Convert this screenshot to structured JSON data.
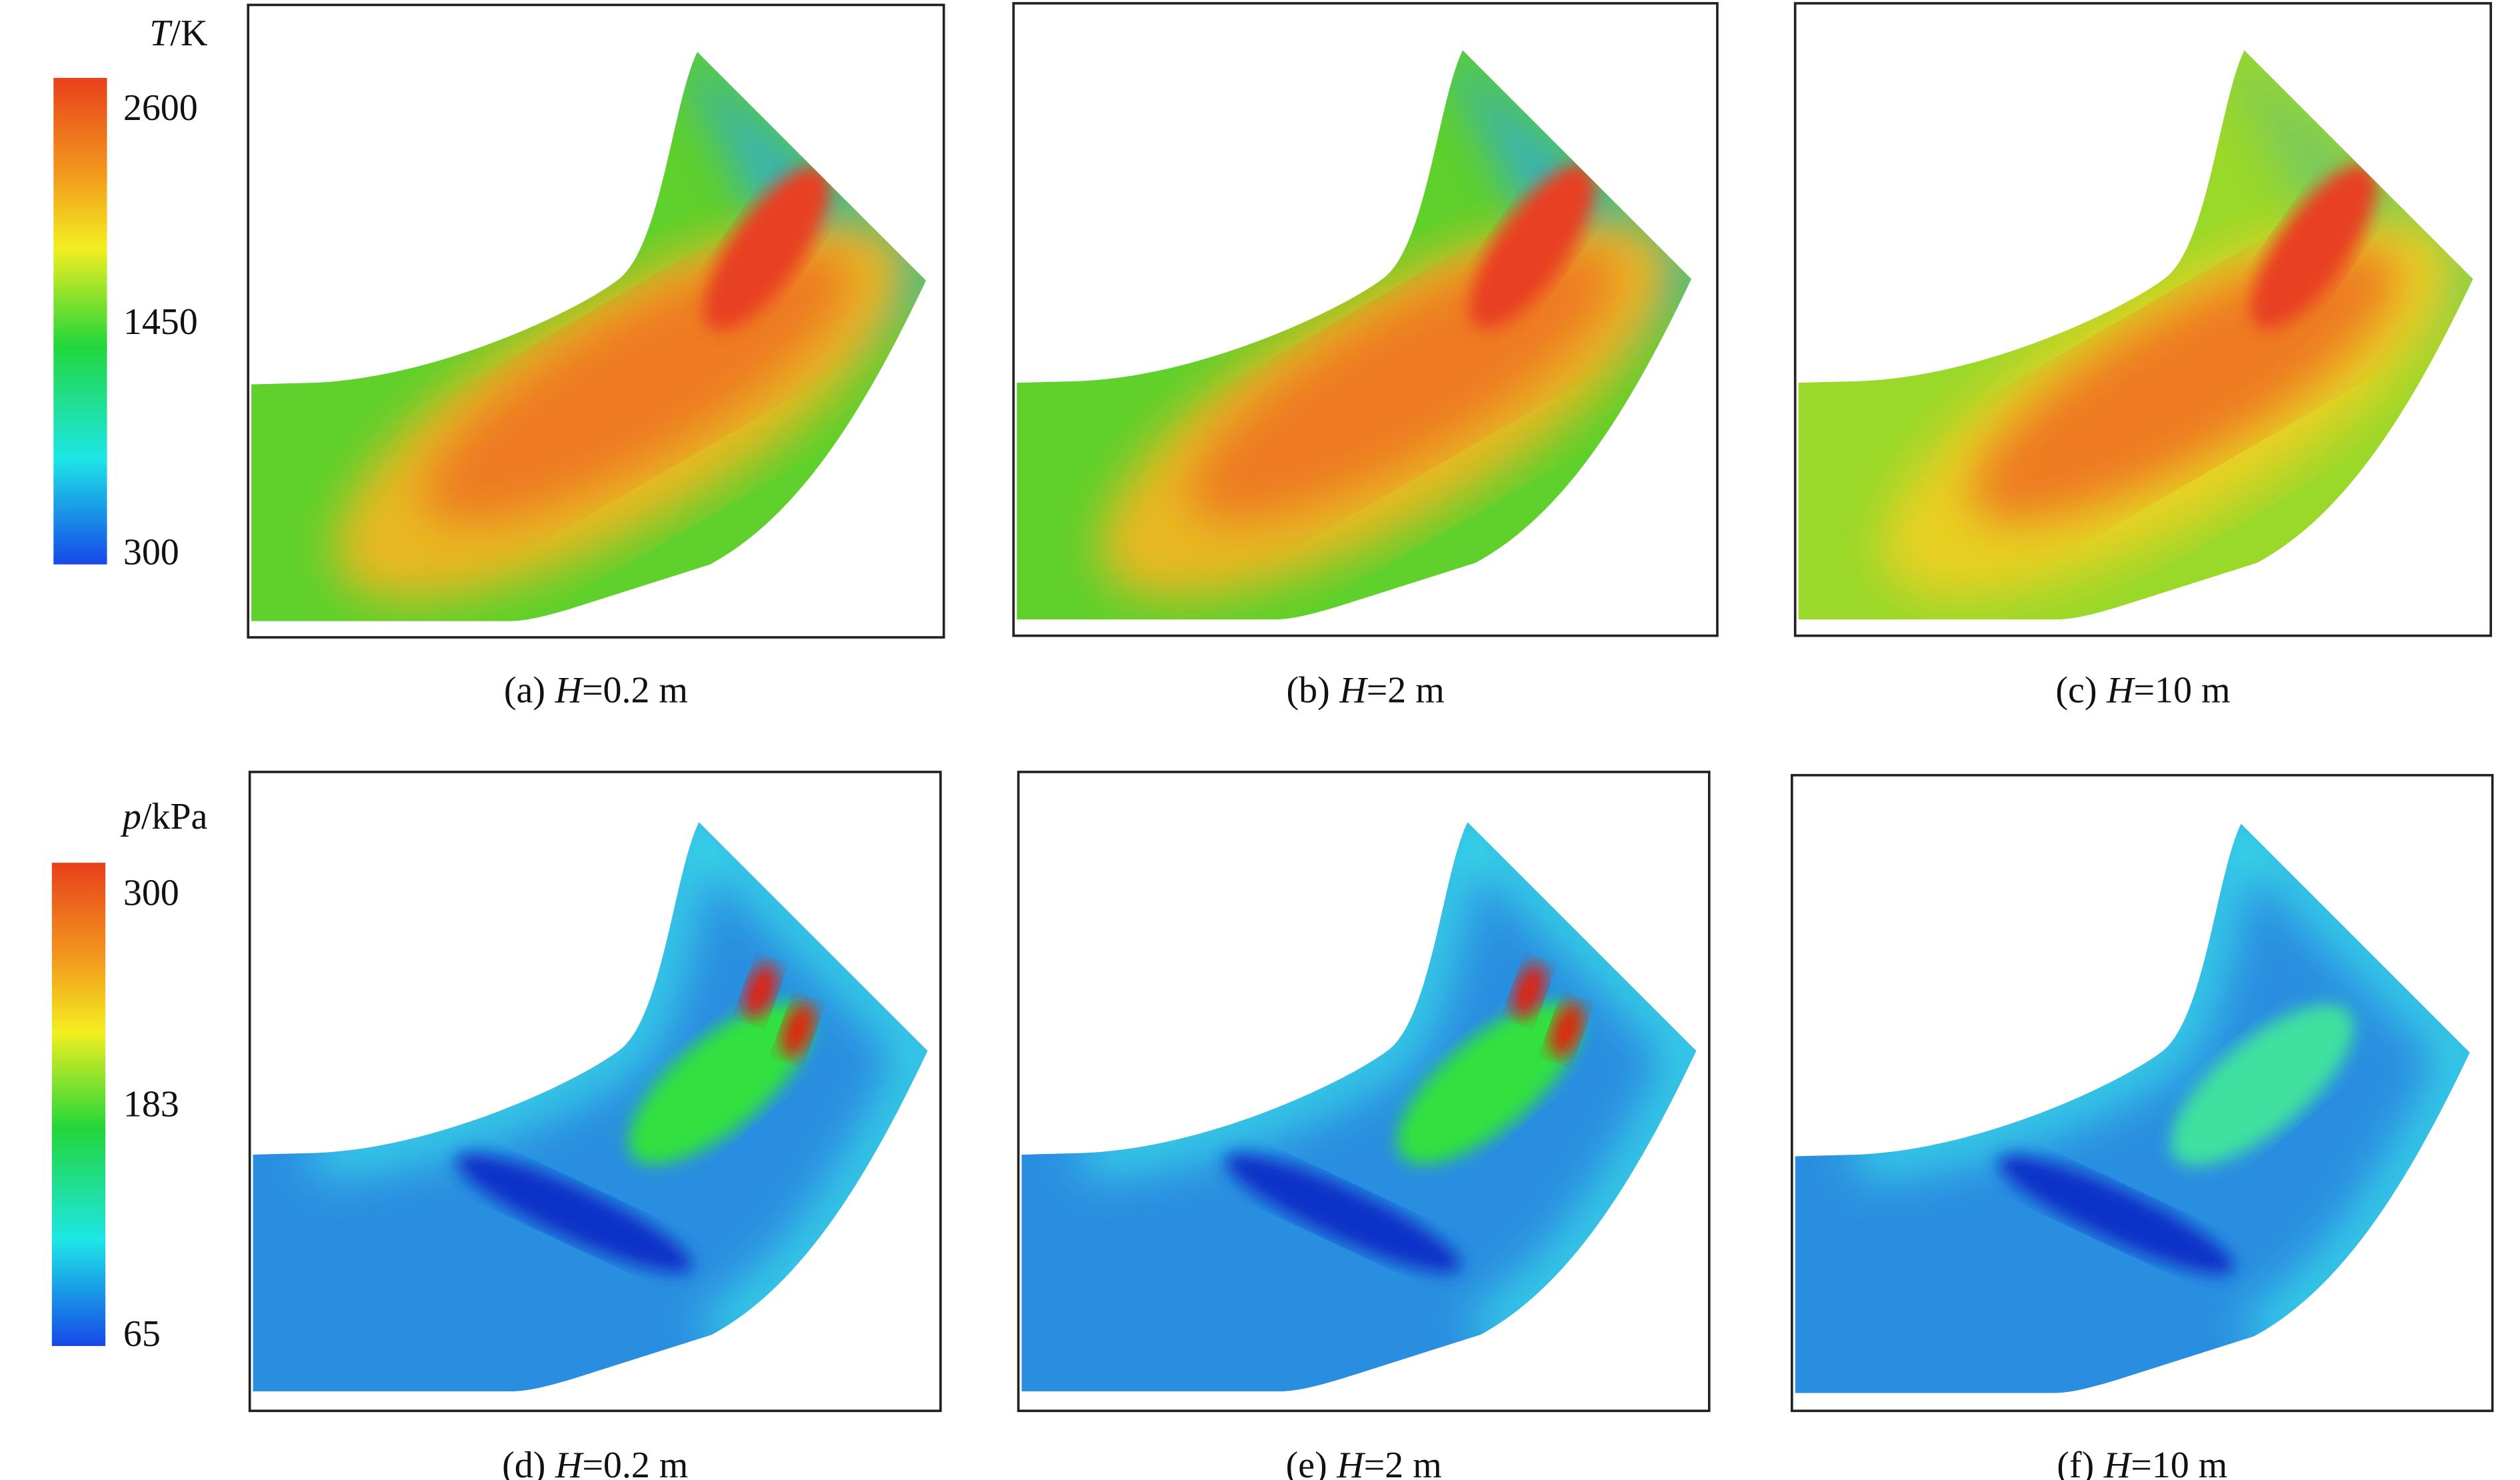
{
  "colorbars": [
    {
      "symbol": "T",
      "unit": "/K",
      "range": [
        300,
        2600
      ],
      "ticks": [
        2600,
        1450,
        300
      ]
    },
    {
      "symbol": "p",
      "unit": "/kPa",
      "range": [
        65,
        300
      ],
      "ticks": [
        300,
        183,
        65
      ]
    }
  ],
  "panels": [
    {
      "prefix": "(a)",
      "symbol": "H",
      "value": "=0.2 m"
    },
    {
      "prefix": "(b)",
      "symbol": "H",
      "value": "=2 m"
    },
    {
      "prefix": "(c)",
      "symbol": "H",
      "value": "=10 m"
    },
    {
      "prefix": "(d)",
      "symbol": "H",
      "value": "=0.2 m"
    },
    {
      "prefix": "(e)",
      "symbol": "H",
      "value": "=2 m"
    },
    {
      "prefix": "(f)",
      "symbol": "H",
      "value": "=10 m"
    }
  ]
}
